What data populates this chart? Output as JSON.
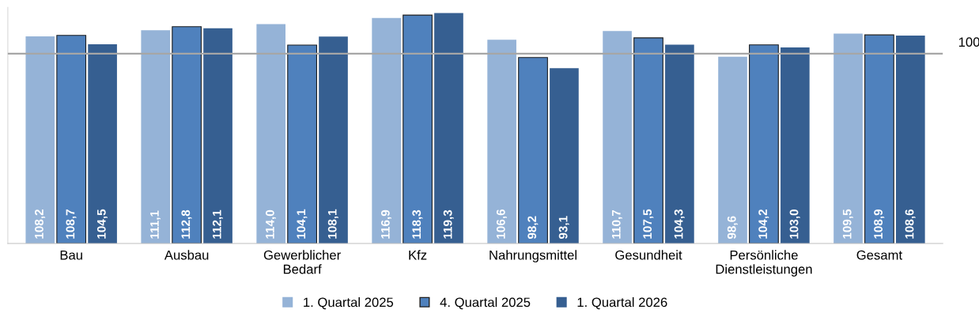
{
  "chart_data": {
    "type": "bar",
    "categories": [
      "Bau",
      "Ausbau",
      "Gewerblicher\nBedarf",
      "Kfz",
      "Nahrungsmittel",
      "Gesundheit",
      "Persönliche\nDienstleistungen",
      "Gesamt"
    ],
    "series": [
      {
        "name": "1. Quartal 2025",
        "color": "#95b3d7",
        "values": [
          108.2,
          111.1,
          114.0,
          116.9,
          106.6,
          110.7,
          98.6,
          109.5
        ],
        "value_labels": [
          "108,2",
          "111,1",
          "114,0",
          "116,9",
          "106,6",
          "110,7",
          "98,6",
          "109,5"
        ]
      },
      {
        "name": "4. Quartal 2025",
        "color": "#4f81bd",
        "values": [
          108.7,
          112.8,
          104.1,
          118.3,
          98.2,
          107.5,
          104.2,
          108.9
        ],
        "value_labels": [
          "108,7",
          "112,8",
          "104,1",
          "118,3",
          "98,2",
          "107,5",
          "104,2",
          "108,9"
        ]
      },
      {
        "name": "1. Quartal 2026",
        "color": "#365f91",
        "values": [
          104.5,
          112.1,
          108.1,
          119.3,
          93.1,
          104.3,
          103.0,
          108.6
        ],
        "value_labels": [
          "104,5",
          "112,1",
          "108,1",
          "119,3",
          "93,1",
          "104,3",
          "103,0",
          "108,6"
        ]
      }
    ],
    "ylim": [
      10,
      122
    ],
    "tick_labels": "x",
    "ref_lines": [
      {
        "axis": "y",
        "value": 100,
        "label": "100",
        "color": "#a6a6a6"
      }
    ],
    "legend": "bottom",
    "grid": false
  }
}
